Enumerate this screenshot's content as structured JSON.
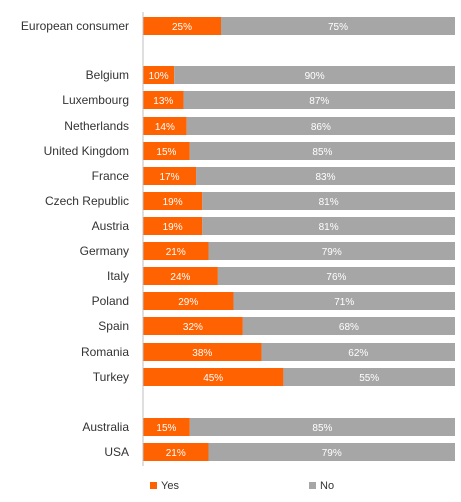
{
  "chart_data": {
    "type": "bar",
    "orientation": "horizontal",
    "stacked": true,
    "percent_stacked": true,
    "categories": [
      "European consumer",
      "Belgium",
      "Luxembourg",
      "Netherlands",
      "United Kingdom",
      "France",
      "Czech Republic",
      "Austria",
      "Germany",
      "Italy",
      "Poland",
      "Spain",
      "Romania",
      "Turkey",
      "Australia",
      "USA"
    ],
    "series": [
      {
        "name": "Yes",
        "color": "#ff6200",
        "values": [
          25,
          10,
          13,
          14,
          15,
          17,
          19,
          19,
          21,
          24,
          29,
          32,
          38,
          45,
          15,
          21
        ],
        "labels": [
          "25%",
          "10%",
          "13%",
          "14%",
          "15%",
          "17%",
          "19%",
          "19%",
          "21%",
          "24%",
          "29%",
          "32%",
          "38%",
          "45%",
          "15%",
          "21%"
        ]
      },
      {
        "name": "No",
        "color": "#a6a6a6",
        "values": [
          75,
          90,
          87,
          86,
          85,
          83,
          81,
          81,
          79,
          76,
          71,
          68,
          62,
          55,
          85,
          79
        ],
        "labels": [
          "75%",
          "90%",
          "87%",
          "86%",
          "85%",
          "83%",
          "81%",
          "81%",
          "79%",
          "76%",
          "71%",
          "68%",
          "62%",
          "55%",
          "85%",
          "79%"
        ]
      }
    ],
    "xlim": [
      0,
      100
    ],
    "title": "",
    "xlabel": "",
    "ylabel": "",
    "grid": false,
    "legend_position": "bottom",
    "data_label_color": "#ffffff",
    "category_label_color": "#333333",
    "axis_line_color": "#bfbfbf"
  }
}
